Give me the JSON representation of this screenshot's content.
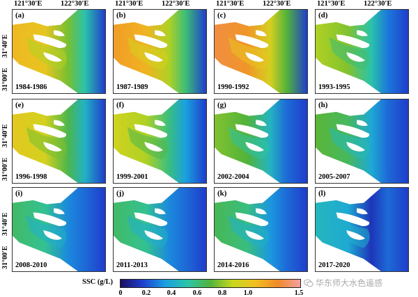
{
  "axes": {
    "lon_labels": [
      "121°30′E",
      "122°30′E"
    ],
    "lat_labels": [
      "31°40′E",
      "31°00′E"
    ]
  },
  "panels": [
    {
      "letter": "(a)",
      "years": "1984-1986",
      "level": 0.72
    },
    {
      "letter": "(b)",
      "years": "1987-1989",
      "level": 0.78
    },
    {
      "letter": "(c)",
      "years": "1990-1992",
      "level": 0.85
    },
    {
      "letter": "(d)",
      "years": "1993-1995",
      "level": 0.55
    },
    {
      "letter": "(e)",
      "years": "1996-1998",
      "level": 0.66
    },
    {
      "letter": "(f)",
      "years": "1999-2001",
      "level": 0.6
    },
    {
      "letter": "(g)",
      "years": "2002-2004",
      "level": 0.5
    },
    {
      "letter": "(h)",
      "years": "2005-2007",
      "level": 0.46
    },
    {
      "letter": "(i)",
      "years": "2008-2010",
      "level": 0.4
    },
    {
      "letter": "(j)",
      "years": "2011-2013",
      "level": 0.4
    },
    {
      "letter": "(k)",
      "years": "2014-2016",
      "level": 0.42
    },
    {
      "letter": "(l)",
      "years": "2017-2020",
      "level": 0.28
    }
  ],
  "colorbar": {
    "label": "SSC (g/L)",
    "ticks": [
      "0",
      "0.2",
      "0.4",
      "0.6",
      "0.8",
      "1.0",
      "1.5"
    ],
    "colors": [
      "#1a0f5e",
      "#1f3fd0",
      "#1aa0e0",
      "#2bc4a8",
      "#52b33a",
      "#c8d81e",
      "#f0c020",
      "#f08a2a",
      "#f4a0a0"
    ]
  },
  "watermark": {
    "text": "华东师大水色遥感",
    "icon": "wechat-icon"
  }
}
